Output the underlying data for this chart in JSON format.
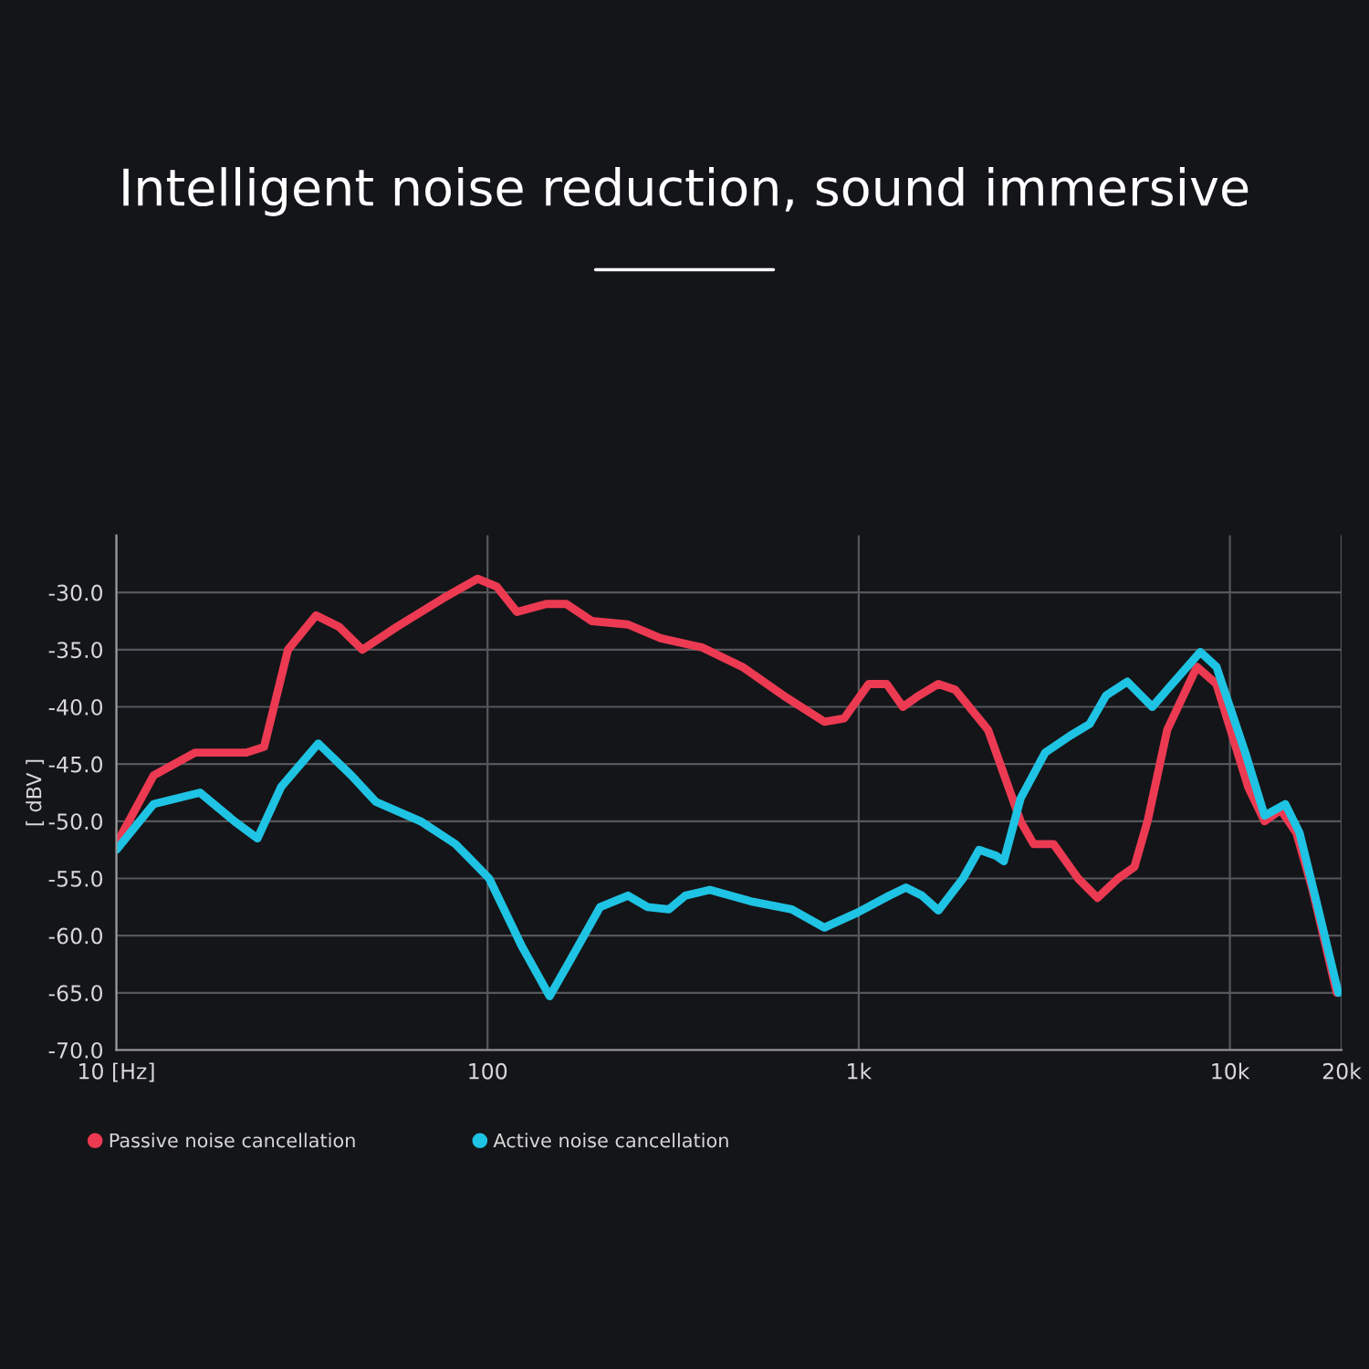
{
  "chart_data": {
    "type": "line",
    "title": "Intelligent noise reduction, sound immersive",
    "ylabel": "[ dBV ]",
    "log": "x",
    "grid": true,
    "legend": "bottom",
    "marker": "none",
    "line_style": "solid",
    "xlim": [
      10,
      20000
    ],
    "xticks": [
      {
        "value": 10,
        "label": "10 [Hz]"
      },
      100,
      {
        "value": 1000,
        "label": "1k"
      },
      {
        "value": 10000,
        "label": "10k"
      },
      {
        "value": 20000,
        "label": "20k"
      }
    ],
    "ylim": [
      -70,
      -25
    ],
    "yticks": [
      {
        "value": -70,
        "label": "-70.0"
      },
      {
        "value": -65,
        "label": "-65.0"
      },
      {
        "value": -60,
        "label": "-60.0"
      },
      {
        "value": -55,
        "label": "-55.0"
      },
      {
        "value": -50,
        "label": "-50.0"
      },
      {
        "value": -45,
        "label": "-45.0"
      },
      {
        "value": -40,
        "label": "-40.0"
      },
      {
        "value": -35,
        "label": "-35.0"
      },
      {
        "value": -30,
        "label": "-30.0"
      }
    ],
    "series": [
      {
        "name": "Passive noise cancellation",
        "color": "#ec3a52",
        "x": [
          10,
          12.6,
          16.3,
          22.4,
          25,
          29,
          34.5,
          39.8,
          46,
          57,
          76,
          94,
          106,
          120,
          144,
          163,
          191,
          239,
          293,
          378,
          486,
          626,
          808,
          914,
          1064,
          1190,
          1315,
          1455,
          1640,
          1820,
          2230,
          2730,
          2960,
          3350,
          3900,
          4400,
          5000,
          5530,
          6000,
          6780,
          8150,
          9200,
          11200,
          12400,
          13700,
          15100,
          16700,
          19400
        ],
        "values": [
          -52,
          -46,
          -44,
          -44,
          -43.5,
          -35,
          -32,
          -33,
          -35,
          -33,
          -30.5,
          -28.8,
          -29.5,
          -31.7,
          -31,
          -31,
          -32.5,
          -32.8,
          -34,
          -34.8,
          -36.5,
          -39,
          -41.3,
          -41,
          -38,
          -38,
          -40,
          -39,
          -38,
          -38.5,
          -42,
          -50,
          -52,
          -52,
          -55,
          -56.7,
          -55,
          -54,
          -50,
          -42,
          -36.5,
          -38,
          -47,
          -50,
          -49,
          -51,
          -56,
          -65
        ]
      },
      {
        "name": "Active noise cancellation",
        "color": "#1fc3e3",
        "x": [
          10,
          12.6,
          16.8,
          20.8,
          24,
          27.8,
          35,
          43,
          50,
          66,
          82,
          101,
          124,
          147,
          168,
          201,
          239,
          270,
          308,
          341,
          397,
          512,
          660,
          808,
          990,
          1210,
          1340,
          1480,
          1640,
          1910,
          2110,
          2340,
          2460,
          2730,
          3180,
          3720,
          4190,
          4640,
          5290,
          6180,
          6780,
          8320,
          9200,
          11000,
          12400,
          14100,
          15400,
          17100,
          19600
        ],
        "values": [
          -52.5,
          -48.5,
          -47.5,
          -50,
          -51.5,
          -47,
          -43.2,
          -46,
          -48.3,
          -50,
          -52,
          -55,
          -61,
          -65.3,
          -62,
          -57.5,
          -56.5,
          -57.5,
          -57.7,
          -56.5,
          -56,
          -57,
          -57.7,
          -59.3,
          -58,
          -56.5,
          -55.8,
          -56.5,
          -57.8,
          -55,
          -52.5,
          -53,
          -53.5,
          -48,
          -44,
          -42.5,
          -41.5,
          -39,
          -37.8,
          -40,
          -38.5,
          -35.2,
          -36.5,
          -44,
          -49.5,
          -48.5,
          -51,
          -57,
          -65
        ]
      }
    ]
  }
}
